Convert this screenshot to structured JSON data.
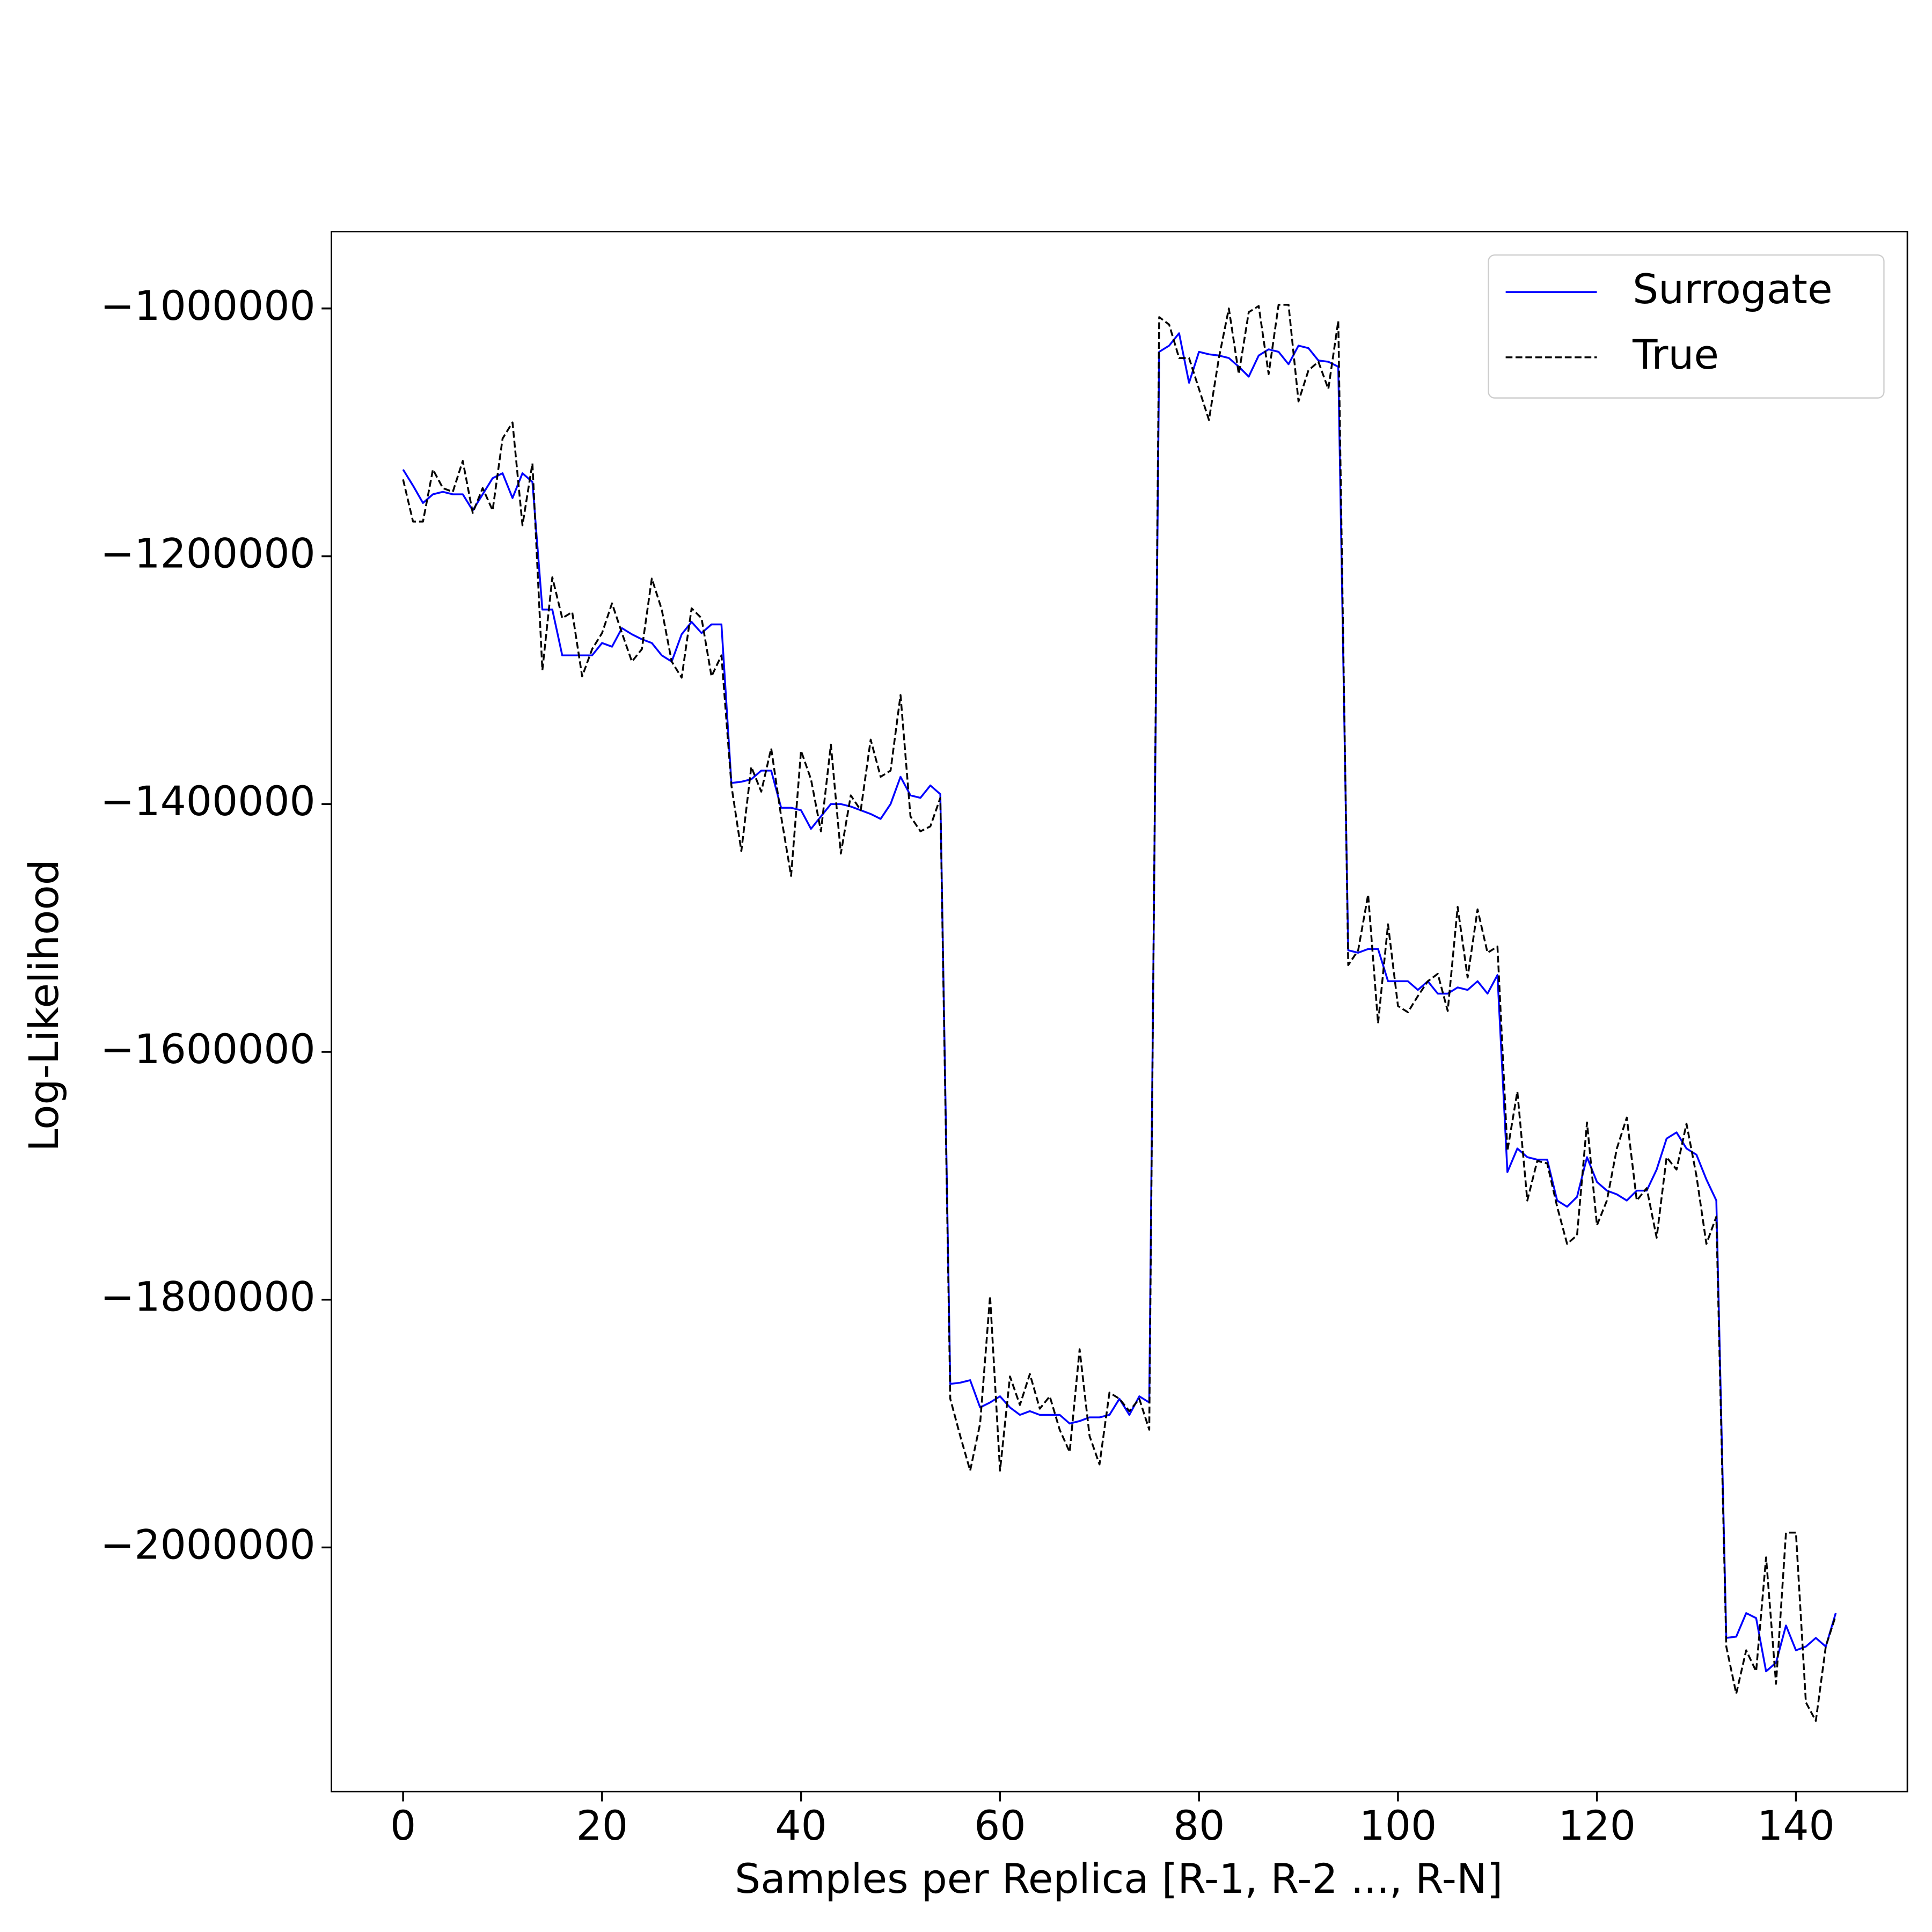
{
  "chart_data": {
    "type": "line",
    "xlabel": "Samples per Replica [R-1, R-2 ..., R-N]",
    "ylabel": "Log-Likelihood",
    "x": [
      0,
      1,
      2,
      3,
      4,
      5,
      6,
      7,
      8,
      9,
      10,
      11,
      12,
      13,
      14,
      15,
      16,
      17,
      18,
      19,
      20,
      21,
      22,
      23,
      24,
      25,
      26,
      27,
      28,
      29,
      30,
      31,
      32,
      33,
      34,
      35,
      36,
      37,
      38,
      39,
      40,
      41,
      42,
      43,
      44,
      45,
      46,
      47,
      48,
      49,
      50,
      51,
      52,
      53,
      54,
      55,
      56,
      57,
      58,
      59,
      60,
      61,
      62,
      63,
      64,
      65,
      66,
      67,
      68,
      69,
      70,
      71,
      72,
      73,
      74,
      75,
      76,
      77,
      78,
      79,
      80,
      81,
      82,
      83,
      84,
      85,
      86,
      87,
      88,
      89,
      90,
      91,
      92,
      93,
      94,
      95,
      96,
      97,
      98,
      99,
      100,
      101,
      102,
      103,
      104,
      105,
      106,
      107,
      108,
      109,
      110,
      111,
      112,
      113,
      114,
      115,
      116,
      117,
      118,
      119,
      120,
      121,
      122,
      123,
      124,
      125,
      126,
      127,
      128,
      129,
      130,
      131,
      132,
      133,
      134,
      135,
      136,
      137,
      138,
      139,
      140,
      141,
      142,
      143,
      144
    ],
    "series": [
      {
        "name": "Surrogate",
        "color": "#0000ff",
        "dash": false,
        "values": [
          -1130000,
          -1143000,
          -1157000,
          -1150000,
          -1148000,
          -1150000,
          -1150000,
          -1163000,
          -1150000,
          -1137000,
          -1133000,
          -1153000,
          -1133000,
          -1140000,
          -1243000,
          -1243000,
          -1280000,
          -1280000,
          -1280000,
          -1280000,
          -1270000,
          -1273000,
          -1258000,
          -1263000,
          -1267000,
          -1270000,
          -1280000,
          -1285000,
          -1263000,
          -1253000,
          -1262000,
          -1255000,
          -1255000,
          -1383000,
          -1382000,
          -1380000,
          -1373000,
          -1373000,
          -1403000,
          -1403000,
          -1405000,
          -1420000,
          -1410000,
          -1400000,
          -1400000,
          -1402000,
          -1405000,
          -1408000,
          -1412000,
          -1400000,
          -1378000,
          -1393000,
          -1395000,
          -1385000,
          -1392000,
          -1868000,
          -1867000,
          -1865000,
          -1887000,
          -1883000,
          -1878000,
          -1887000,
          -1893000,
          -1890000,
          -1893000,
          -1893000,
          -1893000,
          -1900000,
          -1898000,
          -1895000,
          -1895000,
          -1893000,
          -1880000,
          -1893000,
          -1878000,
          -1883000,
          -1035000,
          -1030000,
          -1020000,
          -1060000,
          -1035000,
          -1037000,
          -1038000,
          -1040000,
          -1047000,
          -1055000,
          -1038000,
          -1033000,
          -1035000,
          -1045000,
          -1030000,
          -1032000,
          -1042000,
          -1043000,
          -1047000,
          -1518000,
          -1520000,
          -1517000,
          -1517000,
          -1543000,
          -1543000,
          -1543000,
          -1550000,
          -1543000,
          -1553000,
          -1553000,
          -1548000,
          -1550000,
          -1543000,
          -1553000,
          -1538000,
          -1697000,
          -1678000,
          -1685000,
          -1687000,
          -1687000,
          -1720000,
          -1725000,
          -1717000,
          -1685000,
          -1705000,
          -1712000,
          -1715000,
          -1720000,
          -1712000,
          -1712000,
          -1695000,
          -1670000,
          -1665000,
          -1678000,
          -1683000,
          -1703000,
          -1720000,
          -2073000,
          -2072000,
          -2053000,
          -2057000,
          -2100000,
          -2093000,
          -2063000,
          -2083000,
          -2080000,
          -2073000,
          -2080000,
          -2053000
        ]
      },
      {
        "name": "True",
        "color": "#000000",
        "dash": true,
        "values": [
          -1138000,
          -1172000,
          -1172000,
          -1130000,
          -1145000,
          -1148000,
          -1123000,
          -1165000,
          -1145000,
          -1163000,
          -1105000,
          -1092000,
          -1175000,
          -1125000,
          -1292000,
          -1217000,
          -1250000,
          -1245000,
          -1297000,
          -1275000,
          -1262000,
          -1238000,
          -1262000,
          -1285000,
          -1275000,
          -1218000,
          -1243000,
          -1285000,
          -1298000,
          -1242000,
          -1250000,
          -1297000,
          -1280000,
          -1385000,
          -1438000,
          -1370000,
          -1390000,
          -1355000,
          -1410000,
          -1458000,
          -1357000,
          -1380000,
          -1422000,
          -1352000,
          -1440000,
          -1393000,
          -1405000,
          -1348000,
          -1378000,
          -1373000,
          -1312000,
          -1410000,
          -1422000,
          -1418000,
          -1395000,
          -1880000,
          -1910000,
          -1938000,
          -1900000,
          -1797000,
          -1938000,
          -1862000,
          -1885000,
          -1860000,
          -1888000,
          -1878000,
          -1905000,
          -1923000,
          -1840000,
          -1910000,
          -1933000,
          -1875000,
          -1880000,
          -1890000,
          -1880000,
          -1905000,
          -1007000,
          -1013000,
          -1040000,
          -1040000,
          -1065000,
          -1090000,
          -1040000,
          -1000000,
          -1053000,
          -1003000,
          -998000,
          -1053000,
          -997000,
          -997000,
          -1075000,
          -1050000,
          -1043000,
          -1065000,
          -1010000,
          -1530000,
          -1518000,
          -1473000,
          -1577000,
          -1497000,
          -1563000,
          -1568000,
          -1555000,
          -1543000,
          -1537000,
          -1567000,
          -1483000,
          -1540000,
          -1485000,
          -1520000,
          -1515000,
          -1680000,
          -1632000,
          -1720000,
          -1688000,
          -1690000,
          -1725000,
          -1755000,
          -1748000,
          -1657000,
          -1740000,
          -1720000,
          -1678000,
          -1653000,
          -1720000,
          -1710000,
          -1750000,
          -1685000,
          -1695000,
          -1658000,
          -1700000,
          -1755000,
          -1733000,
          -2080000,
          -2118000,
          -2083000,
          -2100000,
          -2008000,
          -2110000,
          -1988000,
          -1988000,
          -2125000,
          -2140000,
          -2080000,
          -2055000
        ]
      }
    ],
    "xlim": [
      -7.2,
      151.2
    ],
    "ylim": [
      -2197000,
      -938000
    ],
    "xticks": [
      0,
      20,
      40,
      60,
      80,
      100,
      120,
      140
    ],
    "yticks": [
      {
        "value": -2000000,
        "label": "−2000000"
      },
      {
        "value": -1800000,
        "label": "−1800000"
      },
      {
        "value": -1600000,
        "label": "−1600000"
      },
      {
        "value": -1400000,
        "label": "−1400000"
      },
      {
        "value": -1200000,
        "label": "−1200000"
      },
      {
        "value": -1000000,
        "label": "−1000000"
      }
    ],
    "grid": false,
    "legend": "upper right"
  }
}
